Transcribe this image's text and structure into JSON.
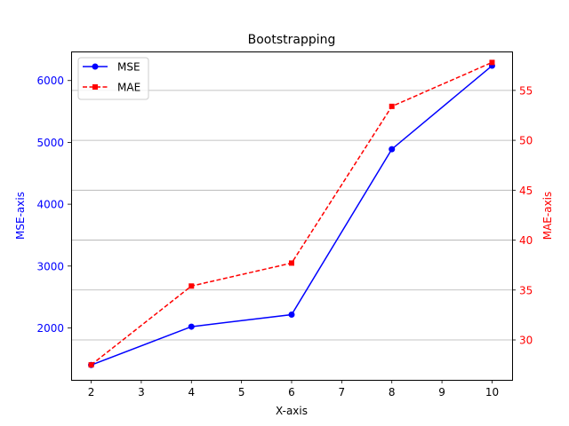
{
  "chart_data": {
    "type": "line",
    "title": "Bootstrapping",
    "xlabel": "X-axis",
    "ylabel_left": "MSE-axis",
    "ylabel_right": "MAE-axis",
    "x": [
      2,
      4,
      6,
      8,
      10
    ],
    "xlim": [
      1.6,
      10.4
    ],
    "x_ticks": [
      2,
      3,
      4,
      5,
      6,
      7,
      8,
      9,
      10
    ],
    "left_axis": {
      "ylim": [
        1160,
        6470
      ],
      "ticks": [
        2000,
        3000,
        4000,
        5000,
        6000
      ],
      "color": "#0000ff"
    },
    "right_axis": {
      "ylim": [
        26.0,
        58.9
      ],
      "ticks": [
        30,
        35,
        40,
        45,
        50,
        55
      ],
      "color": "#ff0000"
    },
    "grid": "horizontal gridlines at right-axis ticks",
    "legend_position": "upper-left",
    "series": [
      {
        "name": "MSE",
        "axis": "left",
        "color": "#0000ff",
        "line_style": "solid",
        "marker": "circle",
        "values": [
          1400,
          2020,
          2215,
          4890,
          6240
        ]
      },
      {
        "name": "MAE",
        "axis": "right",
        "color": "#ff0000",
        "line_style": "dashed",
        "marker": "square",
        "values": [
          27.5,
          35.4,
          37.7,
          53.4,
          57.8
        ]
      }
    ]
  }
}
